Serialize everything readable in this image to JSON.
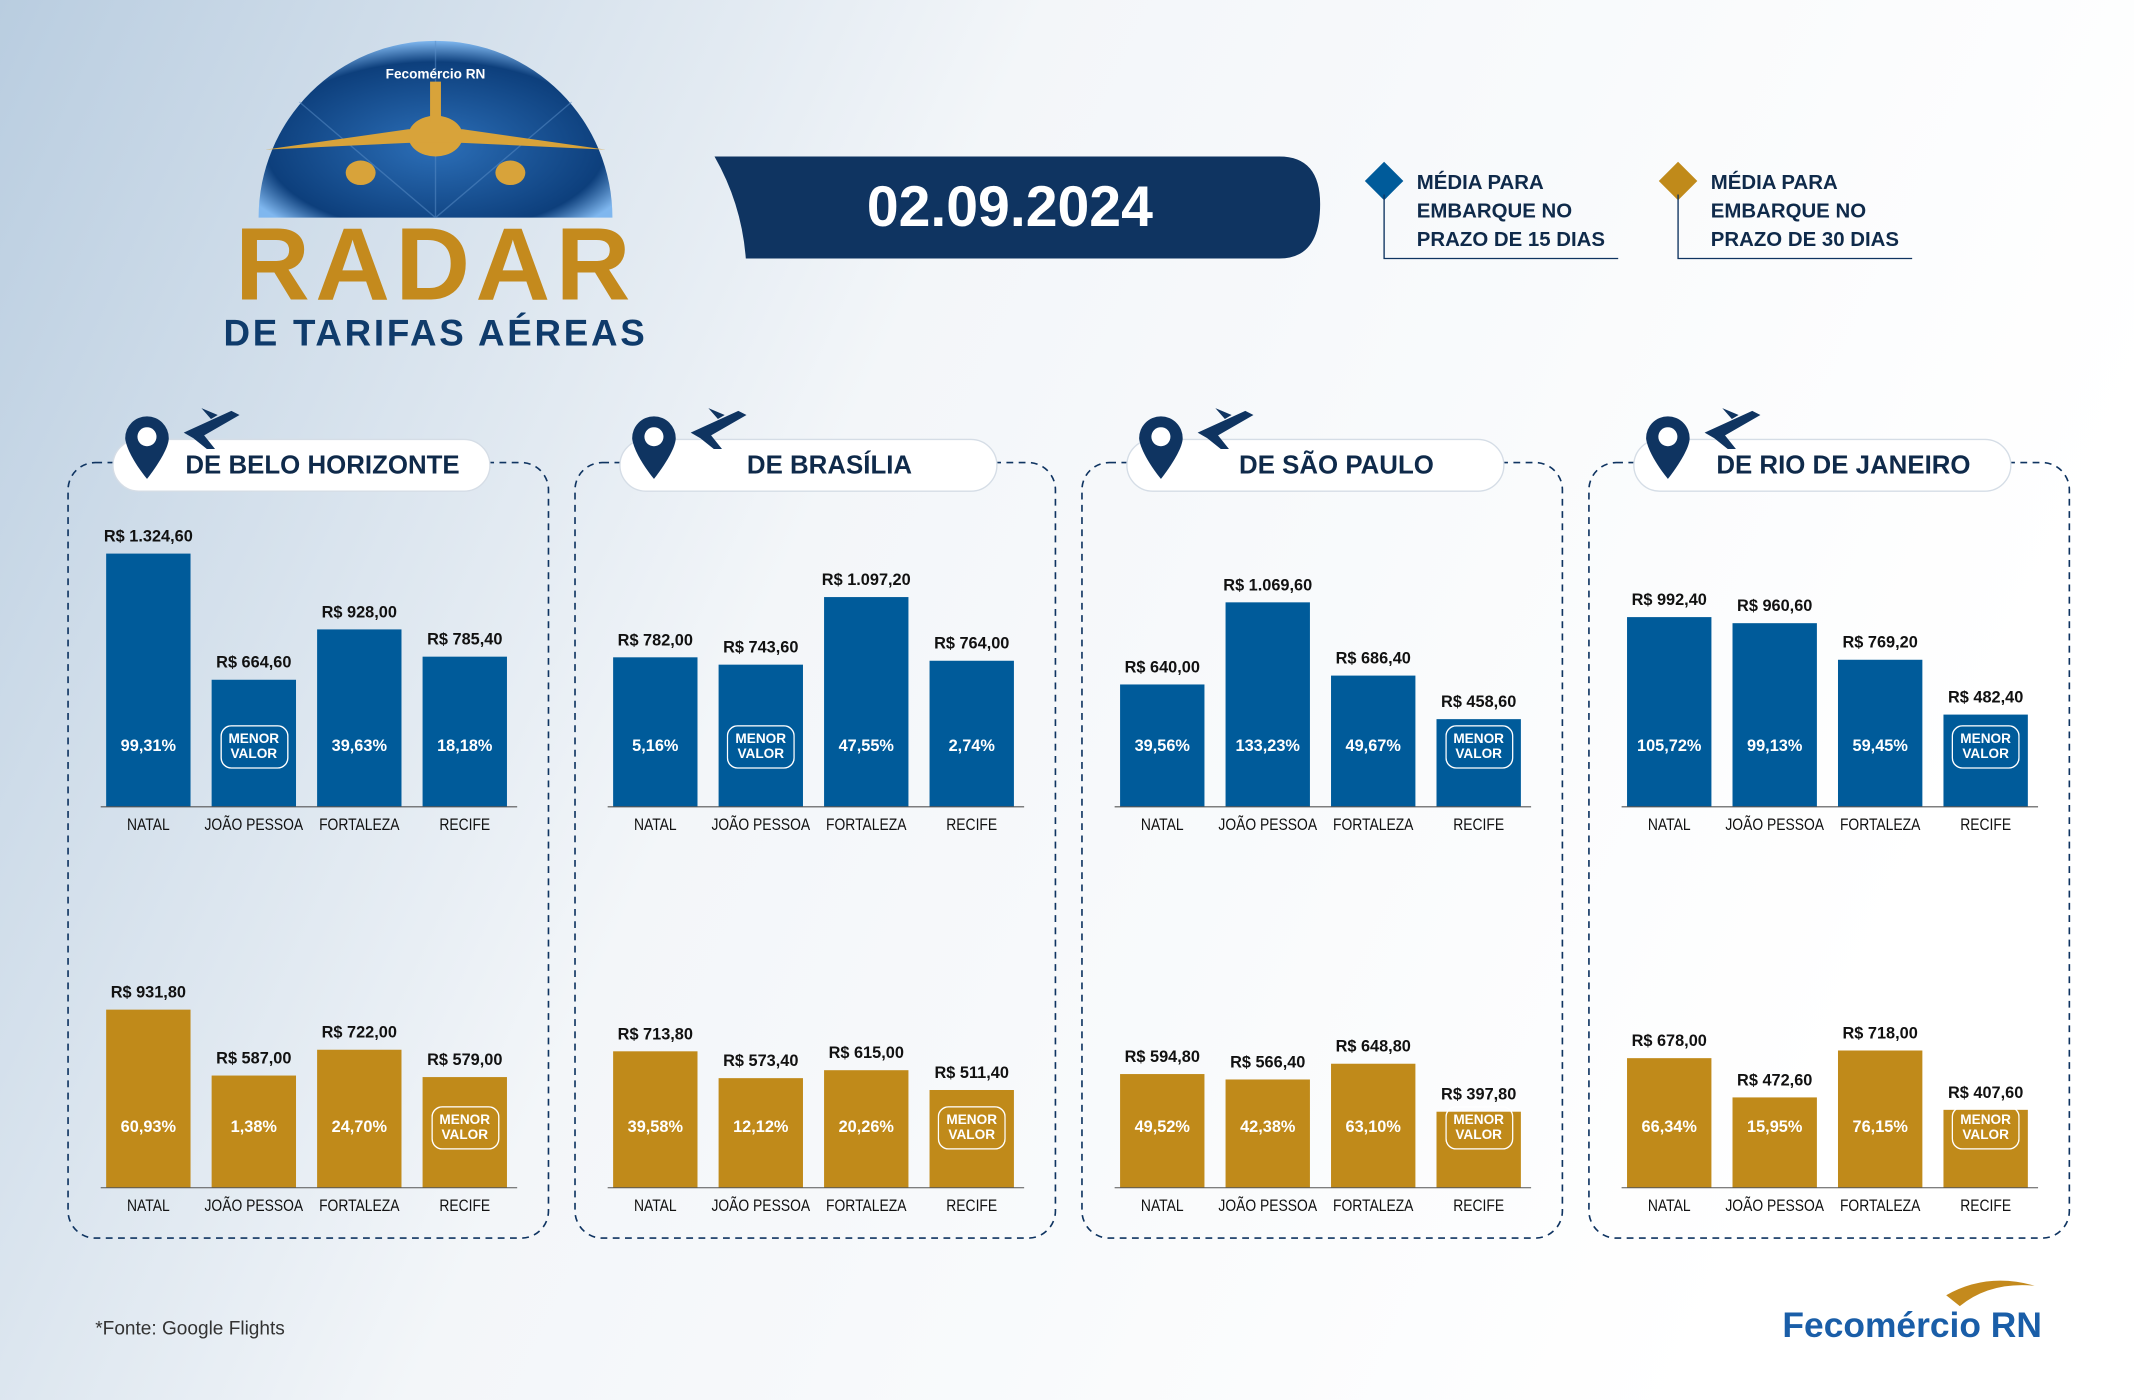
{
  "header": {
    "brand": "Fecomércio RN",
    "title": "RADAR",
    "subtitle": "DE TARIFAS AÉREAS",
    "date": "02.09.2024"
  },
  "legend": [
    {
      "label": [
        "MÉDIA PARA",
        "EMBARQUE NO",
        "PRAZO DE 15 DIAS"
      ],
      "color": "#005b9a"
    },
    {
      "label": [
        "MÉDIA PARA",
        "EMBARQUE NO",
        "PRAZO DE 30 DIAS"
      ],
      "color": "#c08a1a"
    }
  ],
  "chart_data": [
    {
      "type": "bar",
      "title": "DE BELO HORIZONTE",
      "categories": [
        "NATAL",
        "JOÃO PESSOA",
        "FORTALEZA",
        "RECIFE"
      ],
      "series": [
        {
          "color": "#005b9a",
          "values": [
            1324.6,
            664.6,
            928.0,
            785.4
          ],
          "value_labels": [
            "R$ 1.324,60",
            "R$ 664,60",
            "R$ 928,00",
            "R$ 785,40"
          ],
          "notes": [
            "99,31%",
            "MENOR VALOR",
            "39,63%",
            "18,18%"
          ]
        },
        {
          "color": "#c08a1a",
          "values": [
            931.8,
            587.0,
            722.0,
            579.0
          ],
          "value_labels": [
            "R$ 931,80",
            "R$ 587,00",
            "R$ 722,00",
            "R$ 579,00"
          ],
          "notes": [
            "60,93%",
            "1,38%",
            "24,70%",
            "MENOR VALOR"
          ]
        }
      ]
    },
    {
      "type": "bar",
      "title": "DE BRASÍLIA",
      "categories": [
        "NATAL",
        "JOÃO PESSOA",
        "FORTALEZA",
        "RECIFE"
      ],
      "series": [
        {
          "color": "#005b9a",
          "values": [
            782.0,
            743.6,
            1097.2,
            764.0
          ],
          "value_labels": [
            "R$ 782,00",
            "R$ 743,60",
            "R$ 1.097,20",
            "R$ 764,00"
          ],
          "notes": [
            "5,16%",
            "MENOR VALOR",
            "47,55%",
            "2,74%"
          ]
        },
        {
          "color": "#c08a1a",
          "values": [
            713.8,
            573.4,
            615.0,
            511.4
          ],
          "value_labels": [
            "R$ 713,80",
            "R$ 573,40",
            "R$ 615,00",
            "R$ 511,40"
          ],
          "notes": [
            "39,58%",
            "12,12%",
            "20,26%",
            "MENOR VALOR"
          ]
        }
      ]
    },
    {
      "type": "bar",
      "title": "DE SÃO PAULO",
      "categories": [
        "NATAL",
        "JOÃO PESSOA",
        "FORTALEZA",
        "RECIFE"
      ],
      "series": [
        {
          "color": "#005b9a",
          "values": [
            640.0,
            1069.6,
            686.4,
            458.6
          ],
          "value_labels": [
            "R$ 640,00",
            "R$ 1.069,60",
            "R$ 686,40",
            "R$ 458,60"
          ],
          "notes": [
            "39,56%",
            "133,23%",
            "49,67%",
            "MENOR VALOR"
          ]
        },
        {
          "color": "#c08a1a",
          "values": [
            594.8,
            566.4,
            648.8,
            397.8
          ],
          "value_labels": [
            "R$ 594,80",
            "R$ 566,40",
            "R$ 648,80",
            "R$ 397,80"
          ],
          "notes": [
            "49,52%",
            "42,38%",
            "63,10%",
            "MENOR VALOR"
          ]
        }
      ]
    },
    {
      "type": "bar",
      "title": "DE RIO DE JANEIRO",
      "categories": [
        "NATAL",
        "JOÃO PESSOA",
        "FORTALEZA",
        "RECIFE"
      ],
      "series": [
        {
          "color": "#005b9a",
          "values": [
            992.4,
            960.6,
            769.2,
            482.4
          ],
          "value_labels": [
            "R$ 992,40",
            "R$ 960,60",
            "R$ 769,20",
            "R$ 482,40"
          ],
          "notes": [
            "105,72%",
            "99,13%",
            "59,45%",
            "MENOR VALOR"
          ]
        },
        {
          "color": "#c08a1a",
          "values": [
            678.0,
            472.6,
            718.0,
            407.6
          ],
          "value_labels": [
            "R$ 678,00",
            "R$ 472,60",
            "R$ 718,00",
            "R$ 407,60"
          ],
          "notes": [
            "66,34%",
            "15,95%",
            "76,15%",
            "MENOR VALOR"
          ]
        }
      ]
    }
  ],
  "source": "*Fonte: Google Flights"
}
